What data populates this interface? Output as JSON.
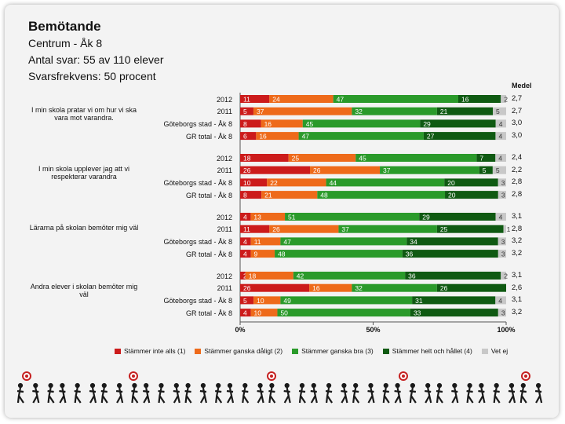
{
  "header": {
    "title": "Bemötande",
    "line1": "Centrum - Åk 8",
    "line2": "Antal svar: 55 av 110 elever",
    "line3": "Svarsfrekvens: 50 procent"
  },
  "chart_data": {
    "type": "bar",
    "orientation": "horizontal",
    "stacked": "percent",
    "mean_header": "Medel",
    "x_ticks": [
      "0%",
      "50%",
      "100%"
    ],
    "legend": [
      {
        "name": "Stämmer inte alls (1)",
        "color": "#cc1b1b"
      },
      {
        "name": "Stämmer ganska dåligt (2)",
        "color": "#ee6a1a"
      },
      {
        "name": "Stämmer ganska bra (3)",
        "color": "#2a9a2a"
      },
      {
        "name": "Stämmer helt och hållet (4)",
        "color": "#0f5a12"
      },
      {
        "name": "Vet ej",
        "color": "#c8c8c8"
      }
    ],
    "groups": [
      {
        "question": "I min skola pratar vi om hur vi ska vara mot varandra.",
        "rows": [
          {
            "label": "2012",
            "values": [
              11,
              24,
              47,
              16,
              2
            ],
            "mean": "2,7"
          },
          {
            "label": "2011",
            "values": [
              5,
              37,
              32,
              21,
              5
            ],
            "mean": "2,7"
          },
          {
            "label": "Göteborgs stad - Åk 8",
            "values": [
              8,
              16,
              45,
              29,
              4
            ],
            "mean": "3,0"
          },
          {
            "label": "GR total - Åk 8",
            "values": [
              6,
              16,
              47,
              27,
              4
            ],
            "mean": "3,0"
          }
        ]
      },
      {
        "question": "I min skola upplever jag att vi respekterar varandra",
        "rows": [
          {
            "label": "2012",
            "values": [
              18,
              25,
              45,
              7,
              4
            ],
            "mean": "2,4"
          },
          {
            "label": "2011",
            "values": [
              26,
              26,
              37,
              5,
              5
            ],
            "mean": "2,2"
          },
          {
            "label": "Göteborgs stad - Åk 8",
            "values": [
              10,
              22,
              44,
              20,
              3
            ],
            "mean": "2,8"
          },
          {
            "label": "GR total - Åk 8",
            "values": [
              8,
              21,
              48,
              20,
              3
            ],
            "mean": "2,8"
          }
        ]
      },
      {
        "question": "Lärarna på skolan bemöter mig väl",
        "rows": [
          {
            "label": "2012",
            "values": [
              4,
              13,
              51,
              29,
              4
            ],
            "mean": "3,1"
          },
          {
            "label": "2011",
            "values": [
              11,
              26,
              37,
              25,
              1
            ],
            "mean": "2,8"
          },
          {
            "label": "Göteborgs stad - Åk 8",
            "values": [
              4,
              11,
              47,
              34,
              3
            ],
            "mean": "3,2"
          },
          {
            "label": "GR total - Åk 8",
            "values": [
              4,
              9,
              48,
              36,
              3
            ],
            "mean": "3,2"
          }
        ]
      },
      {
        "question": "Andra elever i skolan bemöter mig väl",
        "rows": [
          {
            "label": "2012",
            "values": [
              2,
              18,
              42,
              36,
              2
            ],
            "mean": "3,1"
          },
          {
            "label": "2011",
            "values": [
              26,
              16,
              32,
              26,
              0
            ],
            "mean": "2,6"
          },
          {
            "label": "Göteborgs stad - Åk 8",
            "values": [
              5,
              10,
              49,
              31,
              4
            ],
            "mean": "3,1"
          },
          {
            "label": "GR total - Åk 8",
            "values": [
              4,
              10,
              50,
              33,
              3
            ],
            "mean": "3,2"
          }
        ]
      }
    ]
  }
}
